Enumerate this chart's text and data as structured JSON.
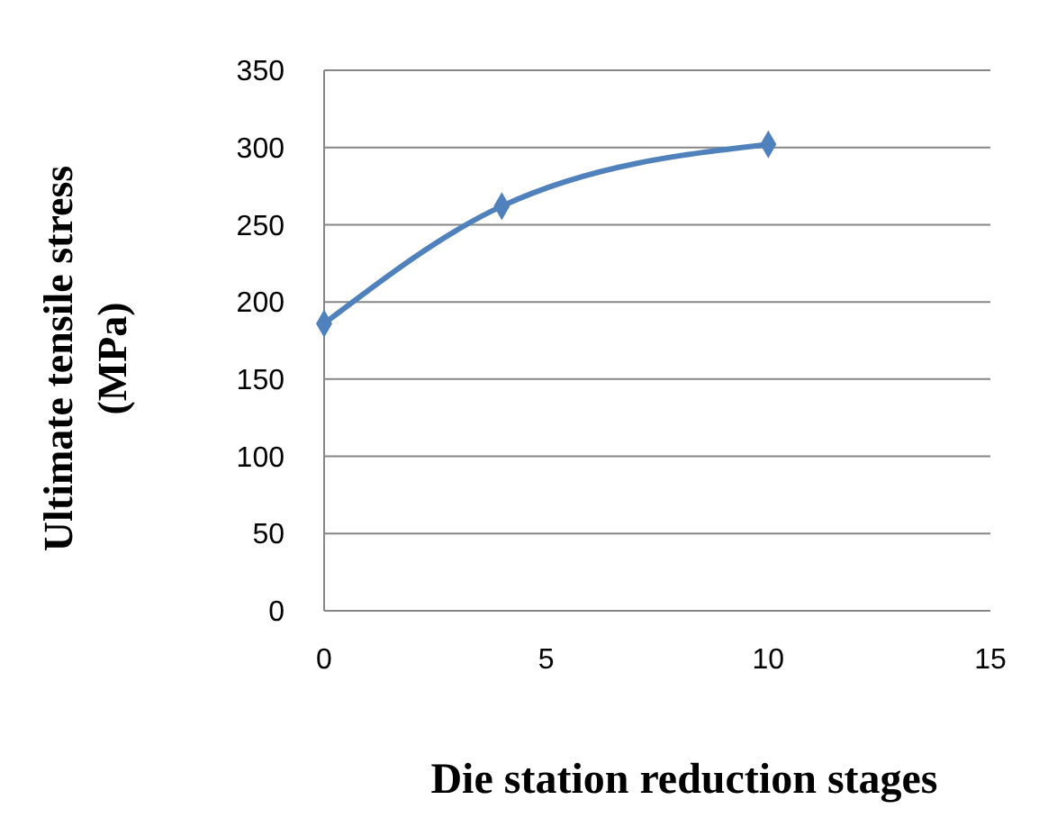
{
  "chart_data": {
    "type": "line",
    "xlabel": "Die station reduction stages",
    "ylabel": "Ultimate tensile stress (MPa)",
    "x": [
      0,
      4,
      10
    ],
    "series": [
      {
        "color": "#4f81bd",
        "values": [
          186,
          262,
          302
        ]
      }
    ],
    "xlim": [
      0,
      15
    ],
    "xticks": [
      0,
      5,
      10,
      15
    ],
    "ylim": [
      0,
      350
    ],
    "yticks": [
      0,
      50,
      100,
      150,
      200,
      250,
      300,
      350
    ],
    "grid": "y",
    "marker": "diamond",
    "line_style": "solid"
  }
}
